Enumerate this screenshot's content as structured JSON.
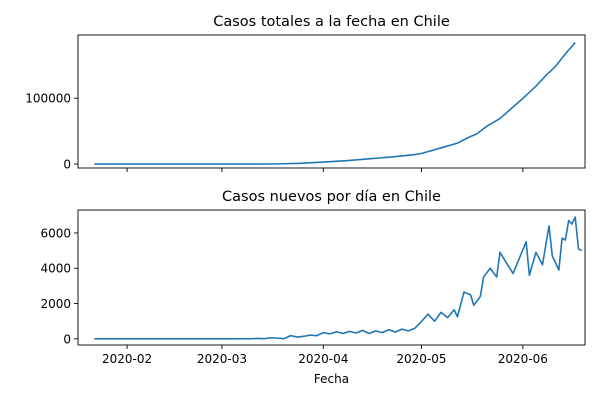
{
  "chart_data": [
    {
      "type": "line",
      "title": "Casos totales a la fecha en Chile",
      "xlabel": "",
      "ylabel": "",
      "x_type": "date",
      "xlim": [
        "2020-01-17",
        "2020-06-20"
      ],
      "ylim": [
        -6000,
        196000
      ],
      "xticks": [
        "2020-02-01",
        "2020-03-01",
        "2020-04-01",
        "2020-05-01",
        "2020-06-01"
      ],
      "xtick_labels_visible": false,
      "yticks": [
        0,
        100000
      ],
      "ytick_labels": [
        "0",
        "100000"
      ],
      "grid": false,
      "series": [
        {
          "color": "#1f77b4",
          "points": [
            [
              "2020-01-22",
              0
            ],
            [
              "2020-03-03",
              0
            ],
            [
              "2020-03-10",
              15
            ],
            [
              "2020-03-15",
              75
            ],
            [
              "2020-03-20",
              434
            ],
            [
              "2020-03-25",
              1142
            ],
            [
              "2020-04-01",
              3031
            ],
            [
              "2020-04-08",
              5116
            ],
            [
              "2020-04-15",
              7917
            ],
            [
              "2020-04-22",
              10832
            ],
            [
              "2020-04-29",
              14365
            ],
            [
              "2020-05-01",
              16023
            ],
            [
              "2020-05-08",
              25972
            ],
            [
              "2020-05-12",
              31721
            ],
            [
              "2020-05-15",
              39542
            ],
            [
              "2020-05-18",
              46059
            ],
            [
              "2020-05-21",
              57581
            ],
            [
              "2020-05-25",
              69102
            ],
            [
              "2020-05-28",
              82289
            ],
            [
              "2020-06-01",
              99688
            ],
            [
              "2020-06-05",
              118292
            ],
            [
              "2020-06-08",
              134150
            ],
            [
              "2020-06-11",
              148456
            ],
            [
              "2020-06-14",
              167355
            ],
            [
              "2020-06-17",
              184449
            ]
          ]
        }
      ]
    },
    {
      "type": "line",
      "title": "Casos nuevos por día en Chile",
      "xlabel": "Fecha",
      "ylabel": "",
      "x_type": "date",
      "xlim": [
        "2020-01-17",
        "2020-06-20"
      ],
      "ylim": [
        -350,
        7300
      ],
      "xticks": [
        "2020-02-01",
        "2020-03-01",
        "2020-04-01",
        "2020-05-01",
        "2020-06-01"
      ],
      "xtick_labels": [
        "2020-02",
        "2020-03",
        "2020-04",
        "2020-05",
        "2020-06"
      ],
      "yticks": [
        0,
        2000,
        4000,
        6000
      ],
      "ytick_labels": [
        "0",
        "2000",
        "4000",
        "6000"
      ],
      "grid": false,
      "series": [
        {
          "color": "#1f77b4",
          "points": [
            [
              "2020-01-22",
              0
            ],
            [
              "2020-03-02",
              0
            ],
            [
              "2020-03-10",
              5
            ],
            [
              "2020-03-12",
              20
            ],
            [
              "2020-03-14",
              10
            ],
            [
              "2020-03-16",
              60
            ],
            [
              "2020-03-18",
              40
            ],
            [
              "2020-03-20",
              10
            ],
            [
              "2020-03-22",
              180
            ],
            [
              "2020-03-24",
              100
            ],
            [
              "2020-03-26",
              140
            ],
            [
              "2020-03-28",
              210
            ],
            [
              "2020-03-30",
              180
            ],
            [
              "2020-04-01",
              350
            ],
            [
              "2020-04-03",
              280
            ],
            [
              "2020-04-05",
              400
            ],
            [
              "2020-04-07",
              300
            ],
            [
              "2020-04-09",
              420
            ],
            [
              "2020-04-11",
              330
            ],
            [
              "2020-04-13",
              480
            ],
            [
              "2020-04-15",
              300
            ],
            [
              "2020-04-17",
              450
            ],
            [
              "2020-04-19",
              350
            ],
            [
              "2020-04-21",
              520
            ],
            [
              "2020-04-23",
              380
            ],
            [
              "2020-04-25",
              550
            ],
            [
              "2020-04-27",
              450
            ],
            [
              "2020-04-29",
              600
            ],
            [
              "2020-05-01",
              980
            ],
            [
              "2020-05-03",
              1400
            ],
            [
              "2020-05-05",
              1000
            ],
            [
              "2020-05-07",
              1500
            ],
            [
              "2020-05-09",
              1200
            ],
            [
              "2020-05-11",
              1650
            ],
            [
              "2020-05-12",
              1250
            ],
            [
              "2020-05-14",
              2650
            ],
            [
              "2020-05-16",
              2500
            ],
            [
              "2020-05-17",
              1900
            ],
            [
              "2020-05-19",
              2400
            ],
            [
              "2020-05-20",
              3500
            ],
            [
              "2020-05-22",
              4000
            ],
            [
              "2020-05-24",
              3500
            ],
            [
              "2020-05-25",
              4900
            ],
            [
              "2020-05-27",
              4300
            ],
            [
              "2020-05-29",
              3700
            ],
            [
              "2020-05-31",
              4600
            ],
            [
              "2020-06-02",
              5500
            ],
            [
              "2020-06-03",
              3600
            ],
            [
              "2020-06-05",
              4900
            ],
            [
              "2020-06-07",
              4200
            ],
            [
              "2020-06-09",
              6400
            ],
            [
              "2020-06-10",
              4700
            ],
            [
              "2020-06-12",
              3900
            ],
            [
              "2020-06-13",
              5700
            ],
            [
              "2020-06-14",
              5600
            ],
            [
              "2020-06-15",
              6700
            ],
            [
              "2020-06-16",
              6500
            ],
            [
              "2020-06-17",
              6900
            ],
            [
              "2020-06-18",
              5100
            ],
            [
              "2020-06-19",
              5000
            ]
          ]
        }
      ]
    }
  ]
}
